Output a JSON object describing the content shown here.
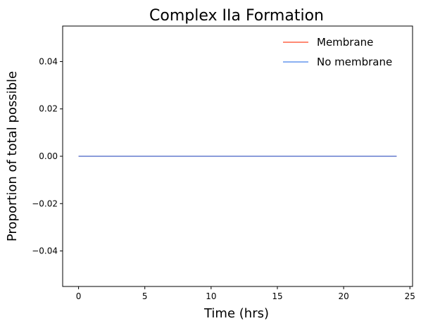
{
  "chart_data": {
    "type": "line",
    "title": "Complex IIa Formation",
    "xlabel": "Time (hrs)",
    "ylabel": "Proportion of total possible",
    "xlim": [
      -1.2,
      25.2
    ],
    "ylim": [
      -0.055,
      0.055
    ],
    "xticks": [
      0,
      5,
      10,
      15,
      20,
      25
    ],
    "xtick_labels": [
      "0",
      "5",
      "10",
      "15",
      "20",
      "25"
    ],
    "yticks": [
      -0.04,
      -0.02,
      0.0,
      0.02,
      0.04
    ],
    "ytick_labels": [
      "−0.04",
      "−0.02",
      "0.00",
      "0.02",
      "0.04"
    ],
    "grid": false,
    "legend_position": "top-right",
    "series": [
      {
        "name": "Membrane",
        "color": "#ff6347",
        "x": [
          0,
          24
        ],
        "y": [
          0,
          0
        ]
      },
      {
        "name": "No membrane",
        "color": "#6495ed",
        "x": [
          0,
          24
        ],
        "y": [
          0,
          0
        ]
      }
    ]
  }
}
